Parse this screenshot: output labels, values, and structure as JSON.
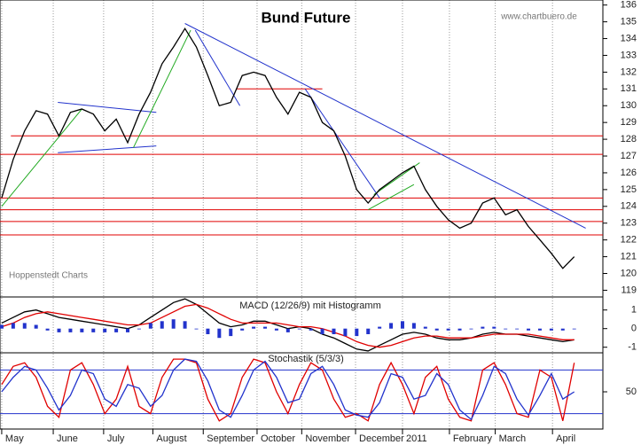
{
  "chart_data": [
    {
      "type": "line",
      "title": "Bund Future",
      "source": "www.chartbuero.de",
      "note": "Hoppenstedt Charts",
      "xlim": [
        -0.15,
        52.5
      ],
      "ylim": [
        118.6,
        136.3
      ],
      "yticks": [
        119,
        120,
        121,
        122,
        123,
        124,
        125,
        126,
        127,
        128,
        129,
        130,
        131,
        132,
        133,
        134,
        135,
        136
      ],
      "x": [
        0,
        1,
        2,
        3,
        4,
        5,
        6,
        7,
        8,
        9,
        10,
        11,
        12,
        13,
        14,
        15,
        16,
        17,
        18,
        19,
        20,
        21,
        22,
        23,
        24,
        25,
        26,
        27,
        28,
        29,
        30,
        31,
        32,
        33,
        34,
        35,
        36,
        37,
        38,
        39,
        40,
        41,
        42,
        43,
        44,
        45,
        46,
        47,
        48,
        49,
        50
      ],
      "series": [
        {
          "color": "#000000",
          "values": [
            124.5,
            126.8,
            128.5,
            129.7,
            129.5,
            128.2,
            129.6,
            129.8,
            129.5,
            128.5,
            129.2,
            127.8,
            129.5,
            130.8,
            132.5,
            133.5,
            134.6,
            133.5,
            131.8,
            130.0,
            130.2,
            131.8,
            132.0,
            131.8,
            130.5,
            129.5,
            130.8,
            130.5,
            129.0,
            128.5,
            127.0,
            125.0,
            124.2,
            125.0,
            125.5,
            126.0,
            126.4,
            125.0,
            124.0,
            123.2,
            122.7,
            123.0,
            124.2,
            124.5,
            123.5,
            123.8,
            122.8,
            122.0,
            121.2,
            120.3,
            121.0
          ]
        }
      ],
      "trendlines": [
        {
          "color": "#2233cc",
          "x": [
            16,
            51
          ],
          "y": [
            134.9,
            122.7
          ]
        },
        {
          "color": "#2233cc",
          "x": [
            4.9,
            13.5
          ],
          "y": [
            130.2,
            129.6
          ]
        },
        {
          "color": "#2233cc",
          "x": [
            4.9,
            13.5
          ],
          "y": [
            127.2,
            127.6
          ]
        },
        {
          "color": "#2233cc",
          "x": [
            16.9,
            20.8
          ],
          "y": [
            134.5,
            130.0
          ]
        },
        {
          "color": "#2233cc",
          "x": [
            26.5,
            33
          ],
          "y": [
            131.0,
            124.5
          ]
        },
        {
          "color": "#22aa22",
          "x": [
            0,
            7
          ],
          "y": [
            124.0,
            129.8
          ]
        },
        {
          "color": "#22aa22",
          "x": [
            11.5,
            16.5
          ],
          "y": [
            127.5,
            134.5
          ]
        },
        {
          "color": "#22aa22",
          "x": [
            32.5,
            36.5
          ],
          "y": [
            124.7,
            126.6
          ]
        },
        {
          "color": "#22aa22",
          "x": [
            32,
            36
          ],
          "y": [
            123.8,
            125.3
          ]
        }
      ],
      "levels": [
        {
          "color": "#e00000",
          "y": 128.2,
          "x": [
            0.8,
            52.5
          ]
        },
        {
          "color": "#e00000",
          "y": 127.1,
          "x": [
            -0.15,
            52.5
          ]
        },
        {
          "color": "#e00000",
          "y": 124.5,
          "x": [
            -0.15,
            52.5
          ]
        },
        {
          "color": "#e00000",
          "y": 123.8,
          "x": [
            -0.15,
            52.5
          ]
        },
        {
          "color": "#e00000",
          "y": 123.1,
          "x": [
            -0.15,
            52.5
          ]
        },
        {
          "color": "#e00000",
          "y": 122.3,
          "x": [
            -0.15,
            52.5
          ]
        },
        {
          "color": "#e00000",
          "y": 131.0,
          "x": [
            20.5,
            28
          ]
        }
      ]
    },
    {
      "type": "line",
      "title": "MACD (12/26/9) mit Histogramm",
      "xlim": [
        -0.15,
        52.5
      ],
      "ylim": [
        -1.3,
        1.7
      ],
      "yticks": [
        1,
        0,
        -1
      ],
      "x": [
        0,
        1,
        2,
        3,
        4,
        5,
        6,
        7,
        8,
        9,
        10,
        11,
        12,
        13,
        14,
        15,
        16,
        17,
        18,
        19,
        20,
        21,
        22,
        23,
        24,
        25,
        26,
        27,
        28,
        29,
        30,
        31,
        32,
        33,
        34,
        35,
        36,
        37,
        38,
        39,
        40,
        41,
        42,
        43,
        44,
        45,
        46,
        47,
        48,
        49,
        50
      ],
      "series": [
        {
          "color": "#000000",
          "values": [
            0.3,
            0.6,
            0.9,
            1.0,
            0.8,
            0.6,
            0.5,
            0.4,
            0.3,
            0.2,
            0.1,
            0.0,
            0.2,
            0.6,
            1.0,
            1.4,
            1.6,
            1.3,
            0.8,
            0.3,
            0.1,
            0.2,
            0.4,
            0.4,
            0.2,
            0.0,
            0.1,
            0.0,
            -0.3,
            -0.5,
            -0.8,
            -1.1,
            -1.2,
            -0.9,
            -0.6,
            -0.3,
            -0.2,
            -0.3,
            -0.5,
            -0.6,
            -0.6,
            -0.5,
            -0.3,
            -0.2,
            -0.3,
            -0.3,
            -0.4,
            -0.5,
            -0.6,
            -0.7,
            -0.6
          ]
        },
        {
          "color": "#e00000",
          "values": [
            0.1,
            0.3,
            0.6,
            0.8,
            0.9,
            0.8,
            0.7,
            0.6,
            0.5,
            0.4,
            0.3,
            0.2,
            0.2,
            0.3,
            0.6,
            0.9,
            1.2,
            1.3,
            1.1,
            0.8,
            0.5,
            0.3,
            0.3,
            0.3,
            0.3,
            0.2,
            0.1,
            0.1,
            0.0,
            -0.2,
            -0.4,
            -0.7,
            -0.9,
            -1.0,
            -0.9,
            -0.7,
            -0.5,
            -0.4,
            -0.4,
            -0.5,
            -0.5,
            -0.5,
            -0.4,
            -0.3,
            -0.3,
            -0.3,
            -0.3,
            -0.4,
            -0.5,
            -0.6,
            -0.6
          ]
        },
        {
          "color": "#2233cc",
          "style": "bar",
          "values": [
            0.2,
            0.3,
            0.3,
            0.2,
            -0.1,
            -0.2,
            -0.2,
            -0.2,
            -0.2,
            -0.2,
            -0.2,
            -0.2,
            0,
            0.3,
            0.4,
            0.5,
            0.4,
            0,
            -0.3,
            -0.5,
            -0.4,
            -0.1,
            0.1,
            0.1,
            -0.1,
            -0.2,
            0,
            -0.1,
            -0.3,
            -0.3,
            -0.4,
            -0.4,
            -0.3,
            0.1,
            0.3,
            0.4,
            0.3,
            0.1,
            -0.1,
            -0.1,
            -0.1,
            0,
            0.1,
            0.1,
            0,
            0,
            -0.1,
            -0.1,
            -0.1,
            -0.1,
            0
          ]
        }
      ]
    },
    {
      "type": "line",
      "title": "Stochastik (5/3/3)",
      "xlim": [
        -0.15,
        52.5
      ],
      "ylim": [
        0,
        100
      ],
      "yticks": [
        50
      ],
      "xticks": [
        {
          "value": 0,
          "label": "May"
        },
        {
          "value": 4.5,
          "label": "June"
        },
        {
          "value": 8.9,
          "label": "July"
        },
        {
          "value": 13.2,
          "label": "August"
        },
        {
          "value": 17.6,
          "label": "September"
        },
        {
          "value": 22.3,
          "label": "October"
        },
        {
          "value": 26.2,
          "label": "November"
        },
        {
          "value": 30.9,
          "label": "December"
        },
        {
          "value": 35,
          "label": "2011"
        },
        {
          "value": 39.1,
          "label": "February"
        },
        {
          "value": 43.1,
          "label": "March"
        },
        {
          "value": 48.1,
          "label": "April"
        }
      ],
      "x": [
        0,
        1,
        2,
        3,
        4,
        5,
        6,
        7,
        8,
        9,
        10,
        11,
        12,
        13,
        14,
        15,
        16,
        17,
        18,
        19,
        20,
        21,
        22,
        23,
        24,
        25,
        26,
        27,
        28,
        29,
        30,
        31,
        32,
        33,
        34,
        35,
        36,
        37,
        38,
        39,
        40,
        41,
        42,
        43,
        44,
        45,
        46,
        47,
        48,
        49,
        50
      ],
      "series": [
        {
          "color": "#e00000",
          "values": [
            60,
            85,
            90,
            70,
            30,
            15,
            80,
            90,
            60,
            20,
            40,
            85,
            30,
            20,
            70,
            95,
            95,
            90,
            40,
            10,
            20,
            70,
            95,
            90,
            50,
            20,
            60,
            90,
            80,
            40,
            15,
            20,
            10,
            60,
            90,
            60,
            20,
            70,
            85,
            40,
            15,
            10,
            80,
            90,
            60,
            20,
            15,
            80,
            70,
            10,
            90
          ]
        },
        {
          "color": "#2233cc",
          "values": [
            50,
            70,
            85,
            80,
            55,
            25,
            45,
            80,
            75,
            40,
            30,
            60,
            55,
            30,
            45,
            80,
            95,
            92,
            65,
            25,
            15,
            45,
            80,
            92,
            70,
            35,
            40,
            75,
            85,
            60,
            25,
            18,
            15,
            35,
            75,
            70,
            40,
            45,
            75,
            60,
            25,
            12,
            45,
            85,
            75,
            40,
            18,
            45,
            75,
            40,
            50
          ]
        }
      ],
      "levels": [
        {
          "color": "#2233cc",
          "y": 20,
          "x": [
            -0.15,
            52.5
          ]
        },
        {
          "color": "#2233cc",
          "y": 80,
          "x": [
            -0.15,
            52.5
          ]
        }
      ]
    }
  ]
}
